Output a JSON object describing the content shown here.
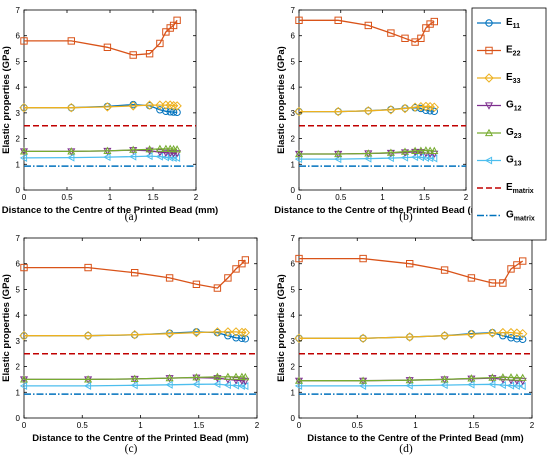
{
  "chart_data": [
    {
      "type": "line",
      "caption": "(a)",
      "xlabel": "Distance to the Centre of the Printed Bead (mm)",
      "ylabel": "Elastic properties (GPa)",
      "xlim": [
        0,
        2
      ],
      "ylim": [
        0,
        7
      ],
      "xticks": [
        "0",
        "0.5",
        "1",
        "1.5",
        "2"
      ],
      "yticks": [
        "0",
        "1",
        "2",
        "3",
        "4",
        "5",
        "6",
        "7"
      ],
      "grid": false,
      "series": [
        {
          "name": "E11",
          "x": [
            0,
            0.55,
            0.97,
            1.27,
            1.46,
            1.58,
            1.65,
            1.7,
            1.74,
            1.78
          ],
          "y": [
            3.2,
            3.2,
            3.25,
            3.32,
            3.28,
            3.12,
            3.06,
            3.04,
            3.03,
            3.02
          ]
        },
        {
          "name": "E22",
          "x": [
            0,
            0.55,
            0.97,
            1.27,
            1.46,
            1.58,
            1.65,
            1.7,
            1.74,
            1.78
          ],
          "y": [
            5.8,
            5.8,
            5.55,
            5.25,
            5.3,
            5.7,
            6.15,
            6.3,
            6.4,
            6.6
          ]
        },
        {
          "name": "E33",
          "x": [
            0,
            0.55,
            0.97,
            1.27,
            1.46,
            1.58,
            1.65,
            1.7,
            1.74,
            1.78
          ],
          "y": [
            3.2,
            3.2,
            3.23,
            3.27,
            3.3,
            3.3,
            3.3,
            3.3,
            3.28,
            3.27
          ]
        },
        {
          "name": "G12",
          "x": [
            0,
            0.55,
            0.97,
            1.27,
            1.46,
            1.58,
            1.65,
            1.7,
            1.74,
            1.78
          ],
          "y": [
            1.5,
            1.5,
            1.52,
            1.55,
            1.53,
            1.47,
            1.45,
            1.44,
            1.43,
            1.43
          ]
        },
        {
          "name": "G23",
          "x": [
            0,
            0.55,
            0.97,
            1.27,
            1.46,
            1.58,
            1.65,
            1.7,
            1.74,
            1.78
          ],
          "y": [
            1.5,
            1.5,
            1.52,
            1.56,
            1.58,
            1.6,
            1.6,
            1.6,
            1.59,
            1.58
          ]
        },
        {
          "name": "G13",
          "x": [
            0,
            0.55,
            0.97,
            1.27,
            1.46,
            1.58,
            1.65,
            1.7,
            1.74,
            1.78
          ],
          "y": [
            1.25,
            1.26,
            1.28,
            1.3,
            1.32,
            1.3,
            1.27,
            1.26,
            1.25,
            1.25
          ]
        }
      ],
      "lines": [
        {
          "name": "Ematrix",
          "y": 2.5
        },
        {
          "name": "Gmatrix",
          "y": 0.93
        }
      ]
    },
    {
      "type": "line",
      "caption": "(b)",
      "xlabel": "Distance to the Centre of the Printed Bead (mm)",
      "ylabel": "Elastic properties (GPa)",
      "xlim": [
        0,
        2
      ],
      "ylim": [
        0,
        7
      ],
      "xticks": [
        "0",
        "0.5",
        "1",
        "1.5",
        "2"
      ],
      "yticks": [
        "0",
        "1",
        "2",
        "3",
        "4",
        "5",
        "6",
        "7"
      ],
      "grid": false,
      "series": [
        {
          "name": "E11",
          "x": [
            0,
            0.47,
            0.83,
            1.1,
            1.27,
            1.39,
            1.46,
            1.52,
            1.57,
            1.62
          ],
          "y": [
            3.05,
            3.05,
            3.08,
            3.13,
            3.18,
            3.2,
            3.17,
            3.1,
            3.08,
            3.06
          ]
        },
        {
          "name": "E22",
          "x": [
            0,
            0.47,
            0.83,
            1.1,
            1.27,
            1.39,
            1.46,
            1.52,
            1.57,
            1.62
          ],
          "y": [
            6.6,
            6.6,
            6.4,
            6.1,
            5.9,
            5.75,
            5.9,
            6.3,
            6.45,
            6.55
          ]
        },
        {
          "name": "E33",
          "x": [
            0,
            0.47,
            0.83,
            1.1,
            1.27,
            1.39,
            1.46,
            1.52,
            1.57,
            1.62
          ],
          "y": [
            3.05,
            3.05,
            3.08,
            3.12,
            3.17,
            3.22,
            3.24,
            3.25,
            3.24,
            3.22
          ]
        },
        {
          "name": "G12",
          "x": [
            0,
            0.47,
            0.83,
            1.1,
            1.27,
            1.39,
            1.46,
            1.52,
            1.57,
            1.62
          ],
          "y": [
            1.4,
            1.4,
            1.42,
            1.44,
            1.46,
            1.48,
            1.47,
            1.44,
            1.42,
            1.41
          ]
        },
        {
          "name": "G23",
          "x": [
            0,
            0.47,
            0.83,
            1.1,
            1.27,
            1.39,
            1.46,
            1.52,
            1.57,
            1.62
          ],
          "y": [
            1.4,
            1.4,
            1.42,
            1.45,
            1.49,
            1.52,
            1.53,
            1.54,
            1.53,
            1.52
          ]
        },
        {
          "name": "G13",
          "x": [
            0,
            0.47,
            0.83,
            1.1,
            1.27,
            1.39,
            1.46,
            1.52,
            1.57,
            1.62
          ],
          "y": [
            1.2,
            1.2,
            1.22,
            1.24,
            1.26,
            1.28,
            1.27,
            1.25,
            1.24,
            1.23
          ]
        }
      ],
      "lines": [
        {
          "name": "Ematrix",
          "y": 2.5
        },
        {
          "name": "Gmatrix",
          "y": 0.93
        }
      ]
    },
    {
      "type": "line",
      "caption": "(c)",
      "xlabel": "Distance to the Centre of the Printed Bead (mm)",
      "ylabel": "Elastic properties (GPa)",
      "xlim": [
        0,
        2
      ],
      "ylim": [
        0,
        7
      ],
      "xticks": [
        "0",
        "0.5",
        "1",
        "1.5",
        "2"
      ],
      "yticks": [
        "0",
        "1",
        "2",
        "3",
        "4",
        "5",
        "6",
        "7"
      ],
      "grid": false,
      "series": [
        {
          "name": "E11",
          "x": [
            0,
            0.55,
            0.95,
            1.25,
            1.48,
            1.66,
            1.75,
            1.82,
            1.87,
            1.9
          ],
          "y": [
            3.2,
            3.2,
            3.23,
            3.3,
            3.35,
            3.32,
            3.2,
            3.12,
            3.1,
            3.08
          ]
        },
        {
          "name": "E22",
          "x": [
            0,
            0.55,
            0.95,
            1.25,
            1.48,
            1.66,
            1.75,
            1.82,
            1.87,
            1.9
          ],
          "y": [
            5.85,
            5.85,
            5.65,
            5.45,
            5.2,
            5.05,
            5.45,
            5.8,
            6.0,
            6.15
          ]
        },
        {
          "name": "E33",
          "x": [
            0,
            0.55,
            0.95,
            1.25,
            1.48,
            1.66,
            1.75,
            1.82,
            1.87,
            1.9
          ],
          "y": [
            3.2,
            3.2,
            3.24,
            3.28,
            3.32,
            3.35,
            3.35,
            3.35,
            3.33,
            3.32
          ]
        },
        {
          "name": "G12",
          "x": [
            0,
            0.55,
            0.95,
            1.25,
            1.48,
            1.66,
            1.75,
            1.82,
            1.87,
            1.9
          ],
          "y": [
            1.5,
            1.5,
            1.52,
            1.55,
            1.57,
            1.55,
            1.5,
            1.47,
            1.45,
            1.44
          ]
        },
        {
          "name": "G23",
          "x": [
            0,
            0.55,
            0.95,
            1.25,
            1.48,
            1.66,
            1.75,
            1.82,
            1.87,
            1.9
          ],
          "y": [
            1.5,
            1.5,
            1.52,
            1.55,
            1.58,
            1.6,
            1.6,
            1.6,
            1.6,
            1.59
          ]
        },
        {
          "name": "G13",
          "x": [
            0,
            0.55,
            0.95,
            1.25,
            1.48,
            1.66,
            1.75,
            1.82,
            1.87,
            1.9
          ],
          "y": [
            1.25,
            1.25,
            1.27,
            1.29,
            1.31,
            1.32,
            1.28,
            1.26,
            1.25,
            1.24
          ]
        }
      ],
      "lines": [
        {
          "name": "Ematrix",
          "y": 2.5
        },
        {
          "name": "Gmatrix",
          "y": 0.93
        }
      ]
    },
    {
      "type": "line",
      "caption": "(d)",
      "xlabel": "Distance to the Centre of the Printed Bead (mm)",
      "ylabel": "Elastic properties (GPa)",
      "xlim": [
        0,
        2
      ],
      "ylim": [
        0,
        7
      ],
      "xticks": [
        "0",
        "0.5",
        "1",
        "1.5",
        "2"
      ],
      "yticks": [
        "0",
        "1",
        "2",
        "3",
        "4",
        "5",
        "6",
        "7"
      ],
      "grid": false,
      "series": [
        {
          "name": "E11",
          "x": [
            0,
            0.55,
            0.95,
            1.25,
            1.48,
            1.66,
            1.75,
            1.82,
            1.87,
            1.92
          ],
          "y": [
            3.1,
            3.1,
            3.15,
            3.2,
            3.28,
            3.32,
            3.2,
            3.12,
            3.08,
            3.06
          ]
        },
        {
          "name": "E22",
          "x": [
            0,
            0.55,
            0.95,
            1.25,
            1.48,
            1.66,
            1.75,
            1.82,
            1.87,
            1.92
          ],
          "y": [
            6.2,
            6.2,
            6.0,
            5.75,
            5.45,
            5.25,
            5.25,
            5.8,
            5.95,
            6.1
          ]
        },
        {
          "name": "E33",
          "x": [
            0,
            0.55,
            0.95,
            1.25,
            1.48,
            1.66,
            1.75,
            1.82,
            1.87,
            1.92
          ],
          "y": [
            3.1,
            3.1,
            3.15,
            3.2,
            3.25,
            3.3,
            3.32,
            3.32,
            3.3,
            3.28
          ]
        },
        {
          "name": "G12",
          "x": [
            0,
            0.55,
            0.95,
            1.25,
            1.48,
            1.66,
            1.75,
            1.82,
            1.87,
            1.92
          ],
          "y": [
            1.45,
            1.45,
            1.47,
            1.5,
            1.53,
            1.55,
            1.5,
            1.47,
            1.45,
            1.44
          ]
        },
        {
          "name": "G23",
          "x": [
            0,
            0.55,
            0.95,
            1.25,
            1.48,
            1.66,
            1.75,
            1.82,
            1.87,
            1.92
          ],
          "y": [
            1.45,
            1.45,
            1.47,
            1.5,
            1.54,
            1.57,
            1.58,
            1.58,
            1.57,
            1.56
          ]
        },
        {
          "name": "G13",
          "x": [
            0,
            0.55,
            0.95,
            1.25,
            1.48,
            1.66,
            1.75,
            1.82,
            1.87,
            1.92
          ],
          "y": [
            1.25,
            1.25,
            1.26,
            1.28,
            1.3,
            1.31,
            1.28,
            1.26,
            1.25,
            1.24
          ]
        }
      ],
      "lines": [
        {
          "name": "Ematrix",
          "y": 2.5
        },
        {
          "name": "Gmatrix",
          "y": 0.93
        }
      ]
    }
  ],
  "legend": {
    "placement": "right, between panels",
    "entries": [
      {
        "key": "E11",
        "base": "E",
        "sub": "11"
      },
      {
        "key": "E22",
        "base": "E",
        "sub": "22"
      },
      {
        "key": "E33",
        "base": "E",
        "sub": "33"
      },
      {
        "key": "G12",
        "base": "G",
        "sub": "12"
      },
      {
        "key": "G23",
        "base": "G",
        "sub": "23"
      },
      {
        "key": "G13",
        "base": "G",
        "sub": "13"
      },
      {
        "key": "Ematrix",
        "base": "E",
        "sub": "matrix"
      },
      {
        "key": "Gmatrix",
        "base": "G",
        "sub": "matrix"
      }
    ]
  },
  "styles": {
    "E11": {
      "color": "#0072BD",
      "marker": "circle"
    },
    "E22": {
      "color": "#D95319",
      "marker": "square"
    },
    "E33": {
      "color": "#EDB120",
      "marker": "diamond"
    },
    "G12": {
      "color": "#7E2F8E",
      "marker": "triangle-down"
    },
    "G23": {
      "color": "#77AC30",
      "marker": "triangle-up"
    },
    "G13": {
      "color": "#4DBEEE",
      "marker": "triangle-left"
    },
    "Ematrix": {
      "color": "#C00000",
      "dash": "dashed"
    },
    "Gmatrix": {
      "color": "#0072BD",
      "dash": "dashdot"
    }
  }
}
